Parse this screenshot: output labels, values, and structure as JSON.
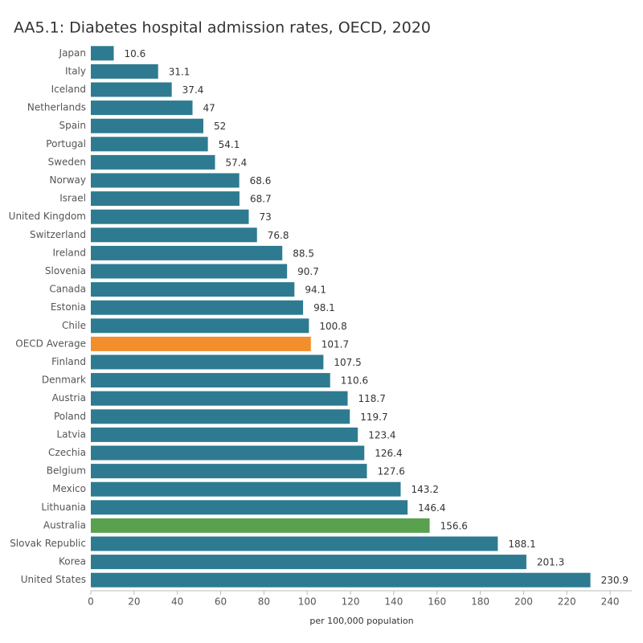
{
  "chart_data": {
    "type": "hbar",
    "title": "AA5.1: Diabetes hospital admission rates, OECD, 2020",
    "x_label": "per 100,000 population",
    "categories": [
      "Japan",
      "Italy",
      "Iceland",
      "Netherlands",
      "Spain",
      "Portugal",
      "Sweden",
      "Norway",
      "Israel",
      "United Kingdom",
      "Switzerland",
      "Ireland",
      "Slovenia",
      "Canada",
      "Estonia",
      "Chile",
      "OECD Average",
      "Finland",
      "Denmark",
      "Austria",
      "Poland",
      "Latvia",
      "Czechia",
      "Belgium",
      "Mexico",
      "Lithuania",
      "Australia",
      "Slovak Republic",
      "Korea",
      "United States"
    ],
    "values": [
      10.6,
      31.1,
      37.4,
      47,
      52,
      54.1,
      57.4,
      68.6,
      68.7,
      73,
      76.8,
      88.5,
      90.7,
      94.1,
      98.1,
      100.8,
      101.7,
      107.5,
      110.6,
      118.7,
      119.7,
      123.4,
      126.4,
      127.6,
      143.2,
      146.4,
      156.6,
      188.1,
      201.3,
      230.9
    ],
    "colors": [
      "#2e7b91",
      "#2e7b91",
      "#2e7b91",
      "#2e7b91",
      "#2e7b91",
      "#2e7b91",
      "#2e7b91",
      "#2e7b91",
      "#2e7b91",
      "#2e7b91",
      "#2e7b91",
      "#2e7b91",
      "#2e7b91",
      "#2e7b91",
      "#2e7b91",
      "#2e7b91",
      "#f28e2b",
      "#2e7b91",
      "#2e7b91",
      "#2e7b91",
      "#2e7b91",
      "#2e7b91",
      "#2e7b91",
      "#2e7b91",
      "#2e7b91",
      "#2e7b91",
      "#59a14f",
      "#2e7b91",
      "#2e7b91",
      "#2e7b91"
    ],
    "xlim": [
      0,
      250
    ],
    "xticks": [
      0,
      20,
      40,
      60,
      80,
      100,
      120,
      140,
      160,
      180,
      200,
      220,
      240
    ],
    "grid": false
  }
}
